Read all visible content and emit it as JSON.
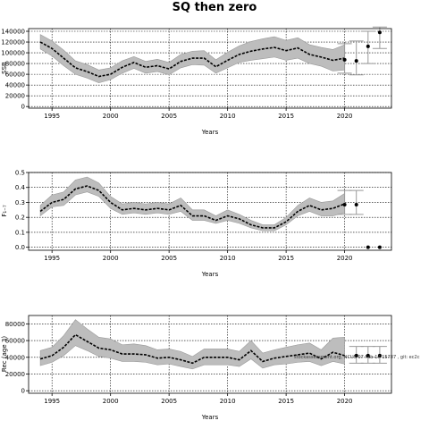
{
  "page": {
    "title": "SQ then zero",
    "annotation": "stockassessment.org, NCUS 07-Feb-17 15787 , git: ec2c"
  },
  "colors": {
    "band": "#bdbdbd",
    "band_edge": "#9a9a9a",
    "line": "#000000",
    "forecast": "#999999"
  },
  "chart_data": [
    {
      "type": "line",
      "xlabel": "Years",
      "ylabel": "SSB",
      "xlim": [
        1993,
        2024
      ],
      "ylim": [
        -3000,
        145000
      ],
      "xticks": [
        1995,
        2000,
        2005,
        2010,
        2015,
        2020
      ],
      "yticks": [
        0,
        20000,
        40000,
        60000,
        80000,
        100000,
        120000,
        140000
      ],
      "grid": true,
      "x": [
        1994,
        1995,
        1996,
        1997,
        1998,
        1999,
        2000,
        2001,
        2002,
        2003,
        2004,
        2005,
        2006,
        2007,
        2008,
        2009,
        2010,
        2011,
        2012,
        2013,
        2014,
        2015,
        2016,
        2017,
        2018,
        2019,
        2020
      ],
      "series": [
        {
          "values": [
            120000,
            108000,
            90000,
            72000,
            65000,
            56000,
            60000,
            73000,
            82000,
            73000,
            76000,
            70000,
            84000,
            90000,
            90000,
            74000,
            86000,
            97000,
            103000,
            107000,
            110000,
            104000,
            109000,
            97000,
            92000,
            86000,
            90000
          ],
          "lower": [
            107000,
            94000,
            76000,
            60000,
            53000,
            44000,
            50000,
            62000,
            71000,
            62000,
            65000,
            59000,
            72000,
            78000,
            77000,
            62000,
            72000,
            82000,
            86000,
            89000,
            92000,
            86000,
            90000,
            80000,
            75000,
            66000,
            68000
          ],
          "upper": [
            134000,
            122000,
            105000,
            85000,
            78000,
            68000,
            72000,
            85000,
            93000,
            84000,
            88000,
            82000,
            97000,
            103000,
            104000,
            87000,
            101000,
            113000,
            121000,
            126000,
            130000,
            123000,
            128000,
            115000,
            110000,
            106000,
            115000
          ]
        }
      ],
      "forecast": [
        {
          "x": 2020,
          "y": 87000,
          "lower": 62000,
          "upper": 117000
        },
        {
          "x": 2021,
          "y": 85000,
          "lower": 59000,
          "upper": 122000
        },
        {
          "x": 2022,
          "y": 112000,
          "lower": 80000,
          "upper": 140000
        },
        {
          "x": 2023,
          "y": 138000,
          "lower": 108000,
          "upper": 148000
        }
      ]
    },
    {
      "type": "line",
      "xlabel": "Years",
      "ylabel": "F₁₋₇",
      "xlim": [
        1993,
        2024
      ],
      "ylim": [
        -0.02,
        0.5
      ],
      "xticks": [
        1995,
        2000,
        2005,
        2010,
        2015,
        2020
      ],
      "yticks": [
        0.0,
        0.1,
        0.2,
        0.3,
        0.4,
        0.5
      ],
      "grid": true,
      "x": [
        1994,
        1995,
        1996,
        1997,
        1998,
        1999,
        2000,
        2001,
        2002,
        2003,
        2004,
        2005,
        2006,
        2007,
        2008,
        2009,
        2010,
        2011,
        2012,
        2013,
        2014,
        2015,
        2016,
        2017,
        2018,
        2019,
        2020
      ],
      "series": [
        {
          "values": [
            0.24,
            0.3,
            0.32,
            0.39,
            0.41,
            0.38,
            0.3,
            0.25,
            0.26,
            0.25,
            0.26,
            0.25,
            0.28,
            0.21,
            0.21,
            0.18,
            0.21,
            0.19,
            0.15,
            0.13,
            0.13,
            0.17,
            0.24,
            0.28,
            0.25,
            0.26,
            0.29
          ],
          "lower": [
            0.21,
            0.27,
            0.28,
            0.35,
            0.37,
            0.34,
            0.26,
            0.22,
            0.23,
            0.22,
            0.23,
            0.22,
            0.24,
            0.18,
            0.18,
            0.16,
            0.18,
            0.16,
            0.13,
            0.11,
            0.11,
            0.15,
            0.21,
            0.24,
            0.21,
            0.21,
            0.23
          ],
          "upper": [
            0.28,
            0.35,
            0.37,
            0.45,
            0.47,
            0.43,
            0.34,
            0.29,
            0.3,
            0.29,
            0.3,
            0.29,
            0.33,
            0.25,
            0.25,
            0.21,
            0.25,
            0.22,
            0.18,
            0.15,
            0.15,
            0.2,
            0.28,
            0.33,
            0.3,
            0.31,
            0.36
          ]
        }
      ],
      "forecast": [
        {
          "x": 2020,
          "y": 0.285,
          "lower": 0.22,
          "upper": 0.38
        },
        {
          "x": 2021,
          "y": 0.285,
          "lower": 0.22,
          "upper": 0.38
        },
        {
          "x": 2022,
          "y": 0.0,
          "lower": 0.0,
          "upper": 0.0
        },
        {
          "x": 2023,
          "y": 0.0,
          "lower": 0.0,
          "upper": 0.0
        }
      ]
    },
    {
      "type": "line",
      "xlabel": "Years",
      "ylabel": "Rec (age 3)",
      "xlim": [
        1993,
        2024
      ],
      "ylim": [
        -3000,
        90000
      ],
      "xticks": [
        1995,
        2000,
        2005,
        2010,
        2015,
        2020
      ],
      "yticks": [
        0,
        20000,
        40000,
        60000,
        80000
      ],
      "grid": true,
      "x": [
        1994,
        1995,
        1996,
        1997,
        1998,
        1999,
        2000,
        2001,
        2002,
        2003,
        2004,
        2005,
        2006,
        2007,
        2008,
        2009,
        2010,
        2011,
        2012,
        2013,
        2014,
        2015,
        2016,
        2017,
        2018,
        2019,
        2020
      ],
      "series": [
        {
          "values": [
            38000,
            42000,
            52000,
            67000,
            59000,
            51000,
            49000,
            44000,
            44000,
            43000,
            39000,
            40000,
            37000,
            33000,
            40000,
            40000,
            40000,
            37000,
            48000,
            35000,
            39000,
            41000,
            43000,
            45000,
            38000,
            46000,
            42000
          ],
          "lower": [
            30000,
            34000,
            42000,
            54000,
            48000,
            41000,
            39000,
            35000,
            35000,
            34000,
            31000,
            32000,
            29000,
            26000,
            31000,
            31000,
            31000,
            29000,
            38000,
            27000,
            31000,
            32000,
            34000,
            35000,
            30000,
            35000,
            32000
          ],
          "upper": [
            48000,
            52000,
            66000,
            85000,
            74000,
            64000,
            62000,
            55000,
            56000,
            54000,
            49000,
            50000,
            47000,
            41000,
            50000,
            50000,
            50000,
            47000,
            60000,
            45000,
            49000,
            52000,
            55000,
            57000,
            49000,
            63000,
            64000
          ]
        }
      ],
      "forecast": [
        {
          "x": 2021,
          "y": 42000,
          "lower": 33000,
          "upper": 53000
        },
        {
          "x": 2022,
          "y": 42000,
          "lower": 33000,
          "upper": 53000
        },
        {
          "x": 2023,
          "y": 42000,
          "lower": 33000,
          "upper": 53000
        }
      ]
    }
  ]
}
